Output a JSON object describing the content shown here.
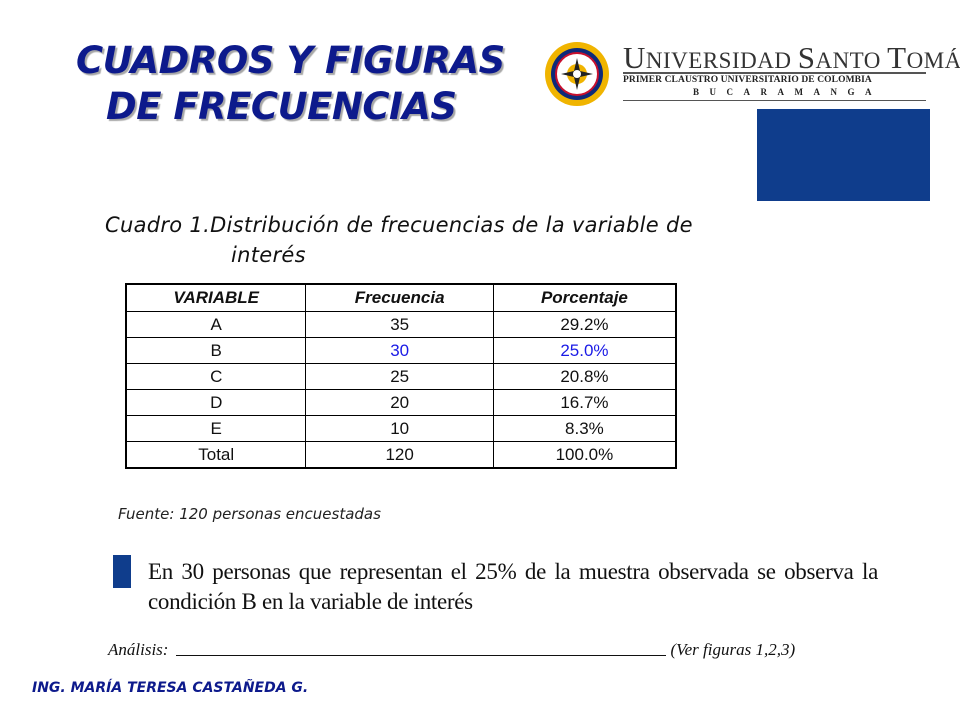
{
  "title": {
    "line1": "CUADROS Y FIGURAS",
    "line2": "DE FRECUENCIAS"
  },
  "logo": {
    "name": "UNIVERSIDAD SANTO TOMÁS",
    "name_parts": [
      "U",
      "NIVERSIDAD ",
      "S",
      "ANTO ",
      "T",
      "OMÁS"
    ],
    "subtitle": "PRIMER CLAUSTRO UNIVERSITARIO DE COLOMBIA",
    "city": "BUCARAMANGA",
    "seal_icon": "university-seal"
  },
  "caption": {
    "line1": "Cuadro 1.Distribución de frecuencias de la variable de",
    "line2": "interés"
  },
  "table": {
    "headers": [
      "VARIABLE",
      "Frecuencia",
      "Porcentaje"
    ],
    "rows": [
      [
        "A",
        "35",
        "29.2%"
      ],
      [
        "B",
        "30",
        "25.0%"
      ],
      [
        "C",
        "25",
        "20.8%"
      ],
      [
        "D",
        "20",
        "16.7%"
      ],
      [
        "E",
        "10",
        "8.3%"
      ],
      [
        "Total",
        "120",
        "100.0%"
      ]
    ],
    "highlight_color": "#1a1ae6"
  },
  "source": "Fuente: 120 personas encuestadas",
  "note": "En 30 personas que representan el 25% de la muestra observada se observa la condición B en la variable de interés",
  "analysis": {
    "label": "Análisis:",
    "ref": "(Ver figuras 1,2,3)"
  },
  "footer": "ING. MARÍA TERESA CASTAÑEDA G.",
  "colors": {
    "title": "#0d1a8c",
    "accent_box": "#0f3d8c"
  }
}
